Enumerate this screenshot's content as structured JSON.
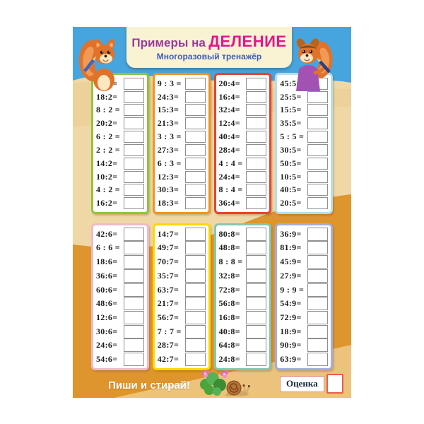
{
  "header": {
    "title_prefix": "Примеры на",
    "title_word": "ДЕЛЕНИЕ",
    "subtitle": "Многоразовый тренажёр"
  },
  "columns": [
    {
      "divisor": "2",
      "border_color": "#8dc63f",
      "problems": [
        "12:2=",
        "18:2=",
        "8 : 2 =",
        "20:2=",
        "6 : 2 =",
        "2 : 2 =",
        "14:2=",
        "10:2=",
        "4 : 2 =",
        "16:2="
      ]
    },
    {
      "divisor": "3",
      "border_color": "#f5921e",
      "problems": [
        "9 : 3 =",
        "24:3=",
        "15:3=",
        "21:3=",
        "3 : 3 =",
        "27:3=",
        "6 : 3 =",
        "12:3=",
        "30:3=",
        "18:3="
      ]
    },
    {
      "divisor": "4",
      "border_color": "#e9422e",
      "problems": [
        "20:4=",
        "16:4=",
        "32:4=",
        "12:4=",
        "40:4=",
        "28:4=",
        "4 : 4 =",
        "24:4=",
        "8 : 4 =",
        "36:4="
      ]
    },
    {
      "divisor": "5",
      "border_color": "#b5ddf0",
      "problems": [
        "45:5=",
        "25:5=",
        "15:5=",
        "35:5=",
        "5 : 5 =",
        "30:5=",
        "50:5=",
        "10:5=",
        "40:5=",
        "20:5="
      ]
    },
    {
      "divisor": "6",
      "border_color": "#efb9ce",
      "problems": [
        "42:6=",
        "6 : 6 =",
        "18:6=",
        "36:6=",
        "60:6=",
        "48:6=",
        "12:6=",
        "30:6=",
        "24:6=",
        "54:6="
      ]
    },
    {
      "divisor": "7",
      "border_color": "#fed800",
      "problems": [
        "14:7=",
        "49:7=",
        "70:7=",
        "35:7=",
        "63:7=",
        "21:7=",
        "56:7=",
        "7 : 7 =",
        "28:7=",
        "42:7="
      ]
    },
    {
      "divisor": "8",
      "border_color": "#82c8af",
      "problems": [
        "80:8=",
        "48:8=",
        "8 : 8 =",
        "32:8=",
        "72:8=",
        "56:8=",
        "16:8=",
        "40:8=",
        "64:8=",
        "24:8="
      ]
    },
    {
      "divisor": "9",
      "border_color": "#a2aeda",
      "problems": [
        "36:9=",
        "81:9=",
        "45:9=",
        "27:9=",
        "9 : 9 =",
        "54:9=",
        "72:9=",
        "18:9=",
        "90:9=",
        "63:9="
      ]
    }
  ],
  "footer": {
    "write_erase_label": "Пиши и стирай!",
    "grade_label": "Оценка"
  },
  "decorations": {
    "left_character": "squirrel-with-pencil",
    "right_character": "squirrel-girl-with-pencil",
    "bottom_center": "snail-with-clover-and-flowers"
  },
  "colors": {
    "sky": "#46a5de",
    "sand_light": "#f0d8a6",
    "sand_dark": "#df952d",
    "sand_mid": "#ecc27d",
    "plate": "#f9f3d3",
    "title_prefix": "#9b3a9b",
    "title_word": "#e5148c",
    "subtitle": "#3a5cc0",
    "grade_box_border": "#e2604f"
  }
}
